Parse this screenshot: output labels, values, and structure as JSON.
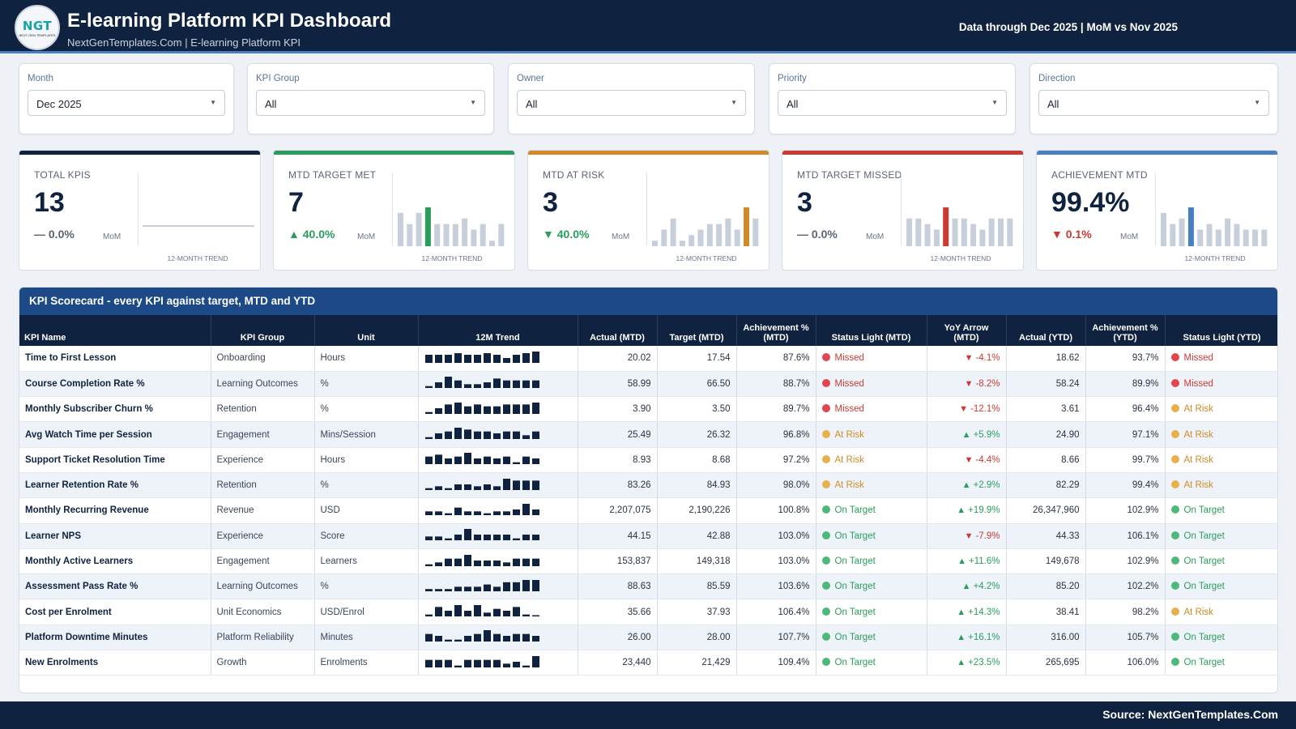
{
  "header": {
    "logo_text": "NGT",
    "logo_subtext": "NEXT GEN TEMPLATES",
    "title": "E-learning Platform KPI Dashboard",
    "subtitle": "NextGenTemplates.Com | E-learning Platform KPI",
    "period_note": "Data through Dec 2025 | MoM vs Nov 2025"
  },
  "filters": [
    {
      "label": "Month",
      "value": "Dec 2025"
    },
    {
      "label": "KPI Group",
      "value": "All"
    },
    {
      "label": "Owner",
      "value": "All"
    },
    {
      "label": "Priority",
      "value": "All"
    },
    {
      "label": "Direction",
      "value": "All"
    }
  ],
  "cards": [
    {
      "label": "TOTAL KPIS",
      "value": "13",
      "delta": "0.0%",
      "direction": "flat",
      "mom": "MoM",
      "trend_label": "12-MONTH TREND",
      "accent": "#0f2340",
      "trend_type": "line",
      "trend": [
        1,
        1,
        1,
        1,
        1,
        1,
        1,
        1,
        1,
        1,
        1,
        1
      ],
      "highlight": -1
    },
    {
      "label": "MTD TARGET MET",
      "value": "7",
      "delta": "40.0%",
      "direction": "up",
      "mom": "MoM",
      "trend_label": "12-MONTH TREND",
      "accent": "#2a9d5c",
      "trend_type": "bar",
      "trend": [
        6,
        4,
        6,
        7,
        4,
        4,
        4,
        5,
        3,
        4,
        1,
        4
      ],
      "highlight": 3,
      "highlight_color": "#2a9d5c"
    },
    {
      "label": "MTD AT RISK",
      "value": "3",
      "delta": "40.0%",
      "direction": "down",
      "mom": "MoM",
      "trend_label": "12-MONTH TREND",
      "accent": "#d08a27",
      "trend_type": "bar",
      "trend": [
        1,
        3,
        5,
        1,
        2,
        3,
        4,
        4,
        5,
        3,
        7,
        5
      ],
      "highlight": 10,
      "highlight_color": "#d08a27"
    },
    {
      "label": "MTD TARGET MISSED",
      "value": "3",
      "delta": "0.0%",
      "direction": "flat",
      "mom": "MoM",
      "trend_label": "12-MONTH TREND",
      "accent": "#c93a33",
      "trend_type": "bar",
      "trend": [
        5,
        5,
        4,
        3,
        7,
        5,
        5,
        4,
        3,
        5,
        5,
        5
      ],
      "highlight": 4,
      "highlight_color": "#c93a33"
    },
    {
      "label": "ACHIEVEMENT MTD",
      "value": "99.4%",
      "delta": "0.1%",
      "direction": "down",
      "mom": "MoM",
      "trend_label": "12-MONTH TREND",
      "accent": "#4a7fc1",
      "trend_type": "bar",
      "trend": [
        6,
        4,
        5,
        7,
        3,
        4,
        3,
        5,
        4,
        3,
        3,
        3
      ],
      "highlight": 3,
      "highlight_color": "#4a7fc1"
    }
  ],
  "scorecard": {
    "title": "KPI Scorecard - every KPI against target, MTD and YTD",
    "columns": [
      "KPI Name",
      "KPI Group",
      "Unit",
      "12M Trend",
      "Actual (MTD)",
      "Target (MTD)",
      "Achievement % (MTD)",
      "Status Light (MTD)",
      "YoY Arrow (MTD)",
      "Actual (YTD)",
      "Achievement % (YTD)",
      "Status Light (YTD)"
    ],
    "rows": [
      {
        "name": "Time to First Lesson",
        "group": "Onboarding",
        "unit": "Hours",
        "trend": [
          5,
          5,
          5,
          6,
          5,
          5,
          6,
          5,
          3,
          5,
          6,
          7
        ],
        "actual_mtd": "20.02",
        "target_mtd": "17.54",
        "ach_mtd": "87.6%",
        "status_mtd": "Missed",
        "yoy_dir": "down",
        "yoy": "-4.1%",
        "actual_ytd": "18.62",
        "ach_ytd": "93.7%",
        "status_ytd": "Missed"
      },
      {
        "name": "Course Completion Rate %",
        "group": "Learning Outcomes",
        "unit": "%",
        "trend": [
          1,
          3,
          6,
          4,
          2,
          2,
          3,
          5,
          4,
          4,
          4,
          4
        ],
        "actual_mtd": "58.99",
        "target_mtd": "66.50",
        "ach_mtd": "88.7%",
        "status_mtd": "Missed",
        "yoy_dir": "down",
        "yoy": "-8.2%",
        "actual_ytd": "58.24",
        "ach_ytd": "89.9%",
        "status_ytd": "Missed"
      },
      {
        "name": "Monthly Subscriber Churn %",
        "group": "Retention",
        "unit": "%",
        "trend": [
          1,
          3,
          5,
          6,
          4,
          5,
          4,
          4,
          5,
          5,
          5,
          6
        ],
        "actual_mtd": "3.90",
        "target_mtd": "3.50",
        "ach_mtd": "89.7%",
        "status_mtd": "Missed",
        "yoy_dir": "down",
        "yoy": "-12.1%",
        "actual_ytd": "3.61",
        "ach_ytd": "96.4%",
        "status_ytd": "At Risk"
      },
      {
        "name": "Avg Watch Time per Session",
        "group": "Engagement",
        "unit": "Mins/Session",
        "trend": [
          1,
          3,
          4,
          6,
          5,
          4,
          4,
          3,
          4,
          4,
          2,
          4
        ],
        "actual_mtd": "25.49",
        "target_mtd": "26.32",
        "ach_mtd": "96.8%",
        "status_mtd": "At Risk",
        "yoy_dir": "up",
        "yoy": "+5.9%",
        "actual_ytd": "24.90",
        "ach_ytd": "97.1%",
        "status_ytd": "At Risk"
      },
      {
        "name": "Support Ticket Resolution Time",
        "group": "Experience",
        "unit": "Hours",
        "trend": [
          4,
          5,
          3,
          4,
          6,
          3,
          4,
          3,
          4,
          1,
          4,
          3
        ],
        "actual_mtd": "8.93",
        "target_mtd": "8.68",
        "ach_mtd": "97.2%",
        "status_mtd": "At Risk",
        "yoy_dir": "down",
        "yoy": "-4.4%",
        "actual_ytd": "8.66",
        "ach_ytd": "99.7%",
        "status_ytd": "At Risk"
      },
      {
        "name": "Learner Retention Rate %",
        "group": "Retention",
        "unit": "%",
        "trend": [
          1,
          2,
          1,
          3,
          3,
          2,
          3,
          2,
          6,
          5,
          5,
          5
        ],
        "actual_mtd": "83.26",
        "target_mtd": "84.93",
        "ach_mtd": "98.0%",
        "status_mtd": "At Risk",
        "yoy_dir": "up",
        "yoy": "+2.9%",
        "actual_ytd": "82.29",
        "ach_ytd": "99.4%",
        "status_ytd": "At Risk"
      },
      {
        "name": "Monthly Recurring Revenue",
        "group": "Revenue",
        "unit": "USD",
        "trend": [
          2,
          2,
          1,
          4,
          2,
          2,
          1,
          2,
          2,
          3,
          6,
          3
        ],
        "actual_mtd": "2,207,075",
        "target_mtd": "2,190,226",
        "ach_mtd": "100.8%",
        "status_mtd": "On Target",
        "yoy_dir": "up",
        "yoy": "+19.9%",
        "actual_ytd": "26,347,960",
        "ach_ytd": "102.9%",
        "status_ytd": "On Target"
      },
      {
        "name": "Learner NPS",
        "group": "Experience",
        "unit": "Score",
        "trend": [
          2,
          2,
          1,
          3,
          6,
          3,
          3,
          3,
          3,
          1,
          3,
          3
        ],
        "actual_mtd": "44.15",
        "target_mtd": "42.88",
        "ach_mtd": "103.0%",
        "status_mtd": "On Target",
        "yoy_dir": "down",
        "yoy": "-7.9%",
        "actual_ytd": "44.33",
        "ach_ytd": "106.1%",
        "status_ytd": "On Target"
      },
      {
        "name": "Monthly Active Learners",
        "group": "Engagement",
        "unit": "Learners",
        "trend": [
          1,
          2,
          4,
          4,
          6,
          3,
          3,
          3,
          2,
          4,
          4,
          4
        ],
        "actual_mtd": "153,837",
        "target_mtd": "149,318",
        "ach_mtd": "103.0%",
        "status_mtd": "On Target",
        "yoy_dir": "up",
        "yoy": "+11.6%",
        "actual_ytd": "149,678",
        "ach_ytd": "102.9%",
        "status_ytd": "On Target"
      },
      {
        "name": "Assessment Pass Rate %",
        "group": "Learning Outcomes",
        "unit": "%",
        "trend": [
          1,
          1,
          1,
          2,
          2,
          2,
          3,
          2,
          4,
          4,
          5,
          5
        ],
        "actual_mtd": "88.63",
        "target_mtd": "85.59",
        "ach_mtd": "103.6%",
        "status_mtd": "On Target",
        "yoy_dir": "up",
        "yoy": "+4.2%",
        "actual_ytd": "85.20",
        "ach_ytd": "102.2%",
        "status_ytd": "On Target"
      },
      {
        "name": "Cost per Enrolment",
        "group": "Unit Economics",
        "unit": "USD/Enrol",
        "trend": [
          1,
          5,
          3,
          6,
          3,
          6,
          2,
          4,
          3,
          5,
          1,
          0
        ],
        "actual_mtd": "35.66",
        "target_mtd": "37.93",
        "ach_mtd": "106.4%",
        "status_mtd": "On Target",
        "yoy_dir": "up",
        "yoy": "+14.3%",
        "actual_ytd": "38.41",
        "ach_ytd": "98.2%",
        "status_ytd": "At Risk"
      },
      {
        "name": "Platform Downtime Minutes",
        "group": "Platform Reliability",
        "unit": "Minutes",
        "trend": [
          4,
          3,
          1,
          1,
          3,
          4,
          6,
          4,
          3,
          4,
          4,
          3
        ],
        "actual_mtd": "26.00",
        "target_mtd": "28.00",
        "ach_mtd": "107.7%",
        "status_mtd": "On Target",
        "yoy_dir": "up",
        "yoy": "+16.1%",
        "actual_ytd": "316.00",
        "ach_ytd": "105.7%",
        "status_ytd": "On Target"
      },
      {
        "name": "New Enrolments",
        "group": "Growth",
        "unit": "Enrolments",
        "trend": [
          4,
          4,
          4,
          1,
          4,
          4,
          4,
          4,
          2,
          3,
          1,
          6
        ],
        "actual_mtd": "23,440",
        "target_mtd": "21,429",
        "ach_mtd": "109.4%",
        "status_mtd": "On Target",
        "yoy_dir": "up",
        "yoy": "+23.5%",
        "actual_ytd": "265,695",
        "ach_ytd": "106.0%",
        "status_ytd": "On Target"
      }
    ]
  },
  "colors": {
    "navy": "#0f2340",
    "green": "#2a9d5c",
    "amber": "#d08a27",
    "red": "#c93a33",
    "blue": "#4a7fc1",
    "grey_bar": "#c7cfdb",
    "status_missed": "#e0464f",
    "status_at_risk": "#e8b04a",
    "status_on_target": "#4cb87a"
  },
  "footer": {
    "source": "Source: NextGenTemplates.Com"
  }
}
